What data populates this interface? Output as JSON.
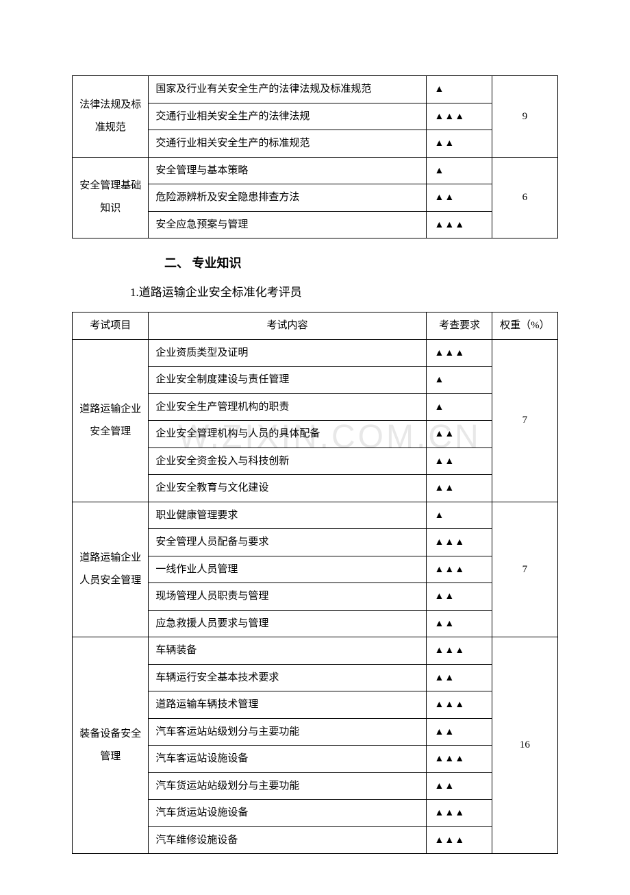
{
  "watermark": "W.ZIXIN.COM.CN",
  "triangle1": "▲",
  "triangle2": "▲▲",
  "triangle3": "▲▲▲",
  "table1": {
    "rows": [
      {
        "category": "法律法规及标准规范",
        "rowspan": 3,
        "items": [
          {
            "content": "国家及行业有关安全生产的法律法规及标准规范",
            "level": 1
          },
          {
            "content": "交通行业相关安全生产的法律法规",
            "level": 3
          },
          {
            "content": "交通行业相关安全生产的标准规范",
            "level": 2
          }
        ],
        "weight": "9"
      },
      {
        "category": "安全管理基础知识",
        "rowspan": 3,
        "items": [
          {
            "content": "安全管理与基本策略",
            "level": 1
          },
          {
            "content": "危险源辨析及安全隐患排查方法",
            "level": 2
          },
          {
            "content": "安全应急预案与管理",
            "level": 3
          }
        ],
        "weight": "6"
      }
    ]
  },
  "section2": {
    "heading": "二、 专业知识",
    "subheading": "1.道路运输企业安全标准化考评员"
  },
  "table2": {
    "headers": {
      "col1": "考试项目",
      "col2": "考试内容",
      "col3": "考查要求",
      "col4": "权重（%）"
    },
    "groups": [
      {
        "category": "道路运输企业安全管理",
        "rowspan": 6,
        "items": [
          {
            "content": "企业资质类型及证明",
            "level": 3
          },
          {
            "content": "企业安全制度建设与责任管理",
            "level": 1
          },
          {
            "content": "企业安全生产管理机构的职责",
            "level": 1
          },
          {
            "content": "企业安全管理机构与人员的具体配备",
            "level": 2
          },
          {
            "content": "企业安全资金投入与科技创新",
            "level": 2
          },
          {
            "content": "企业安全教育与文化建设",
            "level": 2
          }
        ],
        "weight": "7"
      },
      {
        "category": "道路运输企业人员安全管理",
        "rowspan": 5,
        "items": [
          {
            "content": "职业健康管理要求",
            "level": 1
          },
          {
            "content": "安全管理人员配备与要求",
            "level": 3
          },
          {
            "content": "一线作业人员管理",
            "level": 3
          },
          {
            "content": "现场管理人员职责与管理",
            "level": 2
          },
          {
            "content": "应急救援人员要求与管理",
            "level": 2
          }
        ],
        "weight": "7"
      },
      {
        "category": "装备设备安全管理",
        "rowspan": 8,
        "items": [
          {
            "content": "车辆装备",
            "level": 3
          },
          {
            "content": "车辆运行安全基本技术要求",
            "level": 2
          },
          {
            "content": "道路运输车辆技术管理",
            "level": 3
          },
          {
            "content": "汽车客运站站级划分与主要功能",
            "level": 2
          },
          {
            "content": "汽车客运站设施设备",
            "level": 3
          },
          {
            "content": "汽车货运站站级划分与主要功能",
            "level": 2
          },
          {
            "content": "汽车货运站设施设备",
            "level": 3
          },
          {
            "content": "汽车维修设施设备",
            "level": 3
          }
        ],
        "weight": "16"
      }
    ]
  },
  "colors": {
    "text": "#000000",
    "border": "#000000",
    "background": "#ffffff",
    "watermark": "#e8e8e8"
  }
}
